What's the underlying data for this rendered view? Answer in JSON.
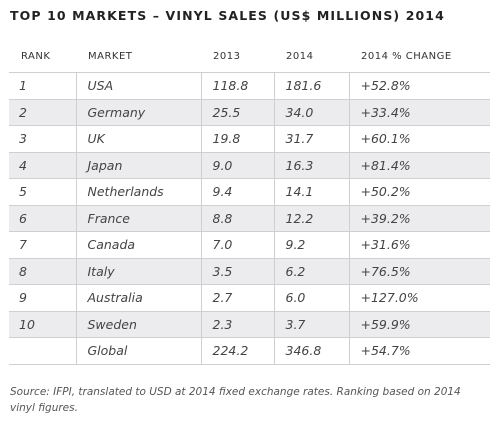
{
  "title": "TOP 10 MARKETS – VINYL SALES (US$ MILLIONS) 2014",
  "table": {
    "headers": [
      "RANK",
      "MARKET",
      "2013",
      "2014",
      "2014 % CHANGE"
    ],
    "rows": [
      [
        "1",
        "USA",
        "118.8",
        "181.6",
        "+52.8%"
      ],
      [
        "2",
        "Germany",
        "25.5",
        "34.0",
        "+33.4%"
      ],
      [
        "3",
        "UK",
        "19.8",
        "31.7",
        "+60.1%"
      ],
      [
        "4",
        "Japan",
        "9.0",
        "16.3",
        "+81.4%"
      ],
      [
        "5",
        "Netherlands",
        "9.4",
        "14.1",
        "+50.2%"
      ],
      [
        "6",
        "France",
        "8.8",
        "12.2",
        "+39.2%"
      ],
      [
        "7",
        "Canada",
        "7.0",
        "9.2",
        "+31.6%"
      ],
      [
        "8",
        "Italy",
        "3.5",
        "6.2",
        "+76.5%"
      ],
      [
        "9",
        "Australia",
        "2.7",
        "6.0",
        "+127.0%"
      ],
      [
        "10",
        "Sweden",
        "2.3",
        "3.7",
        "+59.9%"
      ],
      [
        "",
        "Global",
        "224.2",
        "346.8",
        "+54.7%"
      ]
    ]
  },
  "source": "Source: IFPI, translated to USD at 2014 fixed exchange rates. Ranking based on 2014 vinyl figures."
}
